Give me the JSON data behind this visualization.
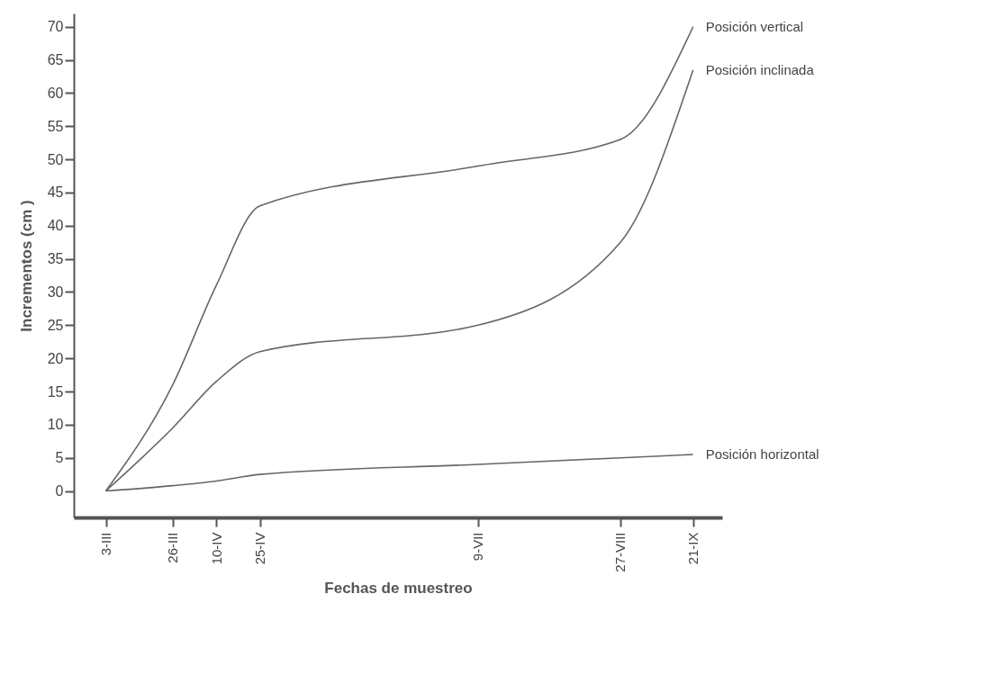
{
  "chart_data": {
    "type": "line",
    "xlabel": "Fechas de muestreo",
    "ylabel": "Incrementos (cm )",
    "x": [
      "--03-03",
      "--03-26",
      "--04-10",
      "--04-25",
      "--07-09",
      "--08-27",
      "--09-21"
    ],
    "xlim": [
      "--02-21",
      "--10-01"
    ],
    "xticks": [
      {
        "value": "--03-03",
        "label": "3-III"
      },
      {
        "value": "--03-26",
        "label": "26-III"
      },
      {
        "value": "--04-10",
        "label": "10-IV"
      },
      {
        "value": "--04-25",
        "label": "25-IV"
      },
      {
        "value": "--07-09",
        "label": "9-VII"
      },
      {
        "value": "--08-27",
        "label": "27-VIII"
      },
      {
        "value": "--09-21",
        "label": "21-IX"
      }
    ],
    "ylim": [
      -4,
      72
    ],
    "yticks": [
      0,
      5,
      10,
      15,
      20,
      25,
      30,
      35,
      40,
      45,
      50,
      55,
      60,
      65,
      70
    ],
    "grid": false,
    "legend": false,
    "marker": "none",
    "line_style": "solid",
    "series": [
      {
        "name": "Posición vertical",
        "color": "#666666",
        "values": [
          0,
          16,
          31,
          43,
          49,
          53,
          70
        ]
      },
      {
        "name": "Posición inclinada",
        "color": "#666666",
        "values": [
          0,
          9.5,
          16.5,
          21,
          25,
          37.5,
          63.5
        ]
      },
      {
        "name": "Posición horizontal",
        "color": "#666666",
        "values": [
          0,
          0.8,
          1.5,
          2.5,
          4,
          5,
          5.5
        ]
      }
    ]
  }
}
